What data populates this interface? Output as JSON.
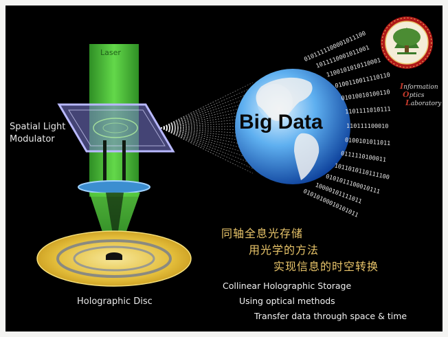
{
  "laser_label": "Laser",
  "slm_label": [
    "Spatial Light",
    "Modulator"
  ],
  "disc_label": "Holographic Disc",
  "big_data_label": "Big Data",
  "binary_lines": [
    "0101111100001011100",
    "1011110001011001",
    "1100101010110001",
    "0100110011110110",
    "01010010100110",
    "1101111010111",
    "110111100010",
    "0100101011011",
    "0111110100011",
    "1011010110111100",
    "0101011100010111",
    "10000101111011",
    "01010100010101011"
  ],
  "chinese_text": [
    "同轴全息光存储",
    "用光学的方法",
    "实现信息的时空转换"
  ],
  "english_text": [
    "Collinear Holographic Storage",
    "Using optical methods",
    "Transfer data through space & time"
  ],
  "lab_logo": {
    "line1_cap": "I",
    "line1": "nformation",
    "line2_cap": "O",
    "line2": "ptics",
    "line3_cap": "L",
    "line3": "aboratory"
  },
  "colors": {
    "beam": "#4fc43a",
    "slm": "#8c8ce0",
    "lens": "#3c8ed0",
    "disc": "#e3bd3a",
    "globe": "#3a8ee0",
    "seal_red": "#b01818",
    "seal_green": "#3b7a2a",
    "cn_text": "#e9c56a"
  }
}
